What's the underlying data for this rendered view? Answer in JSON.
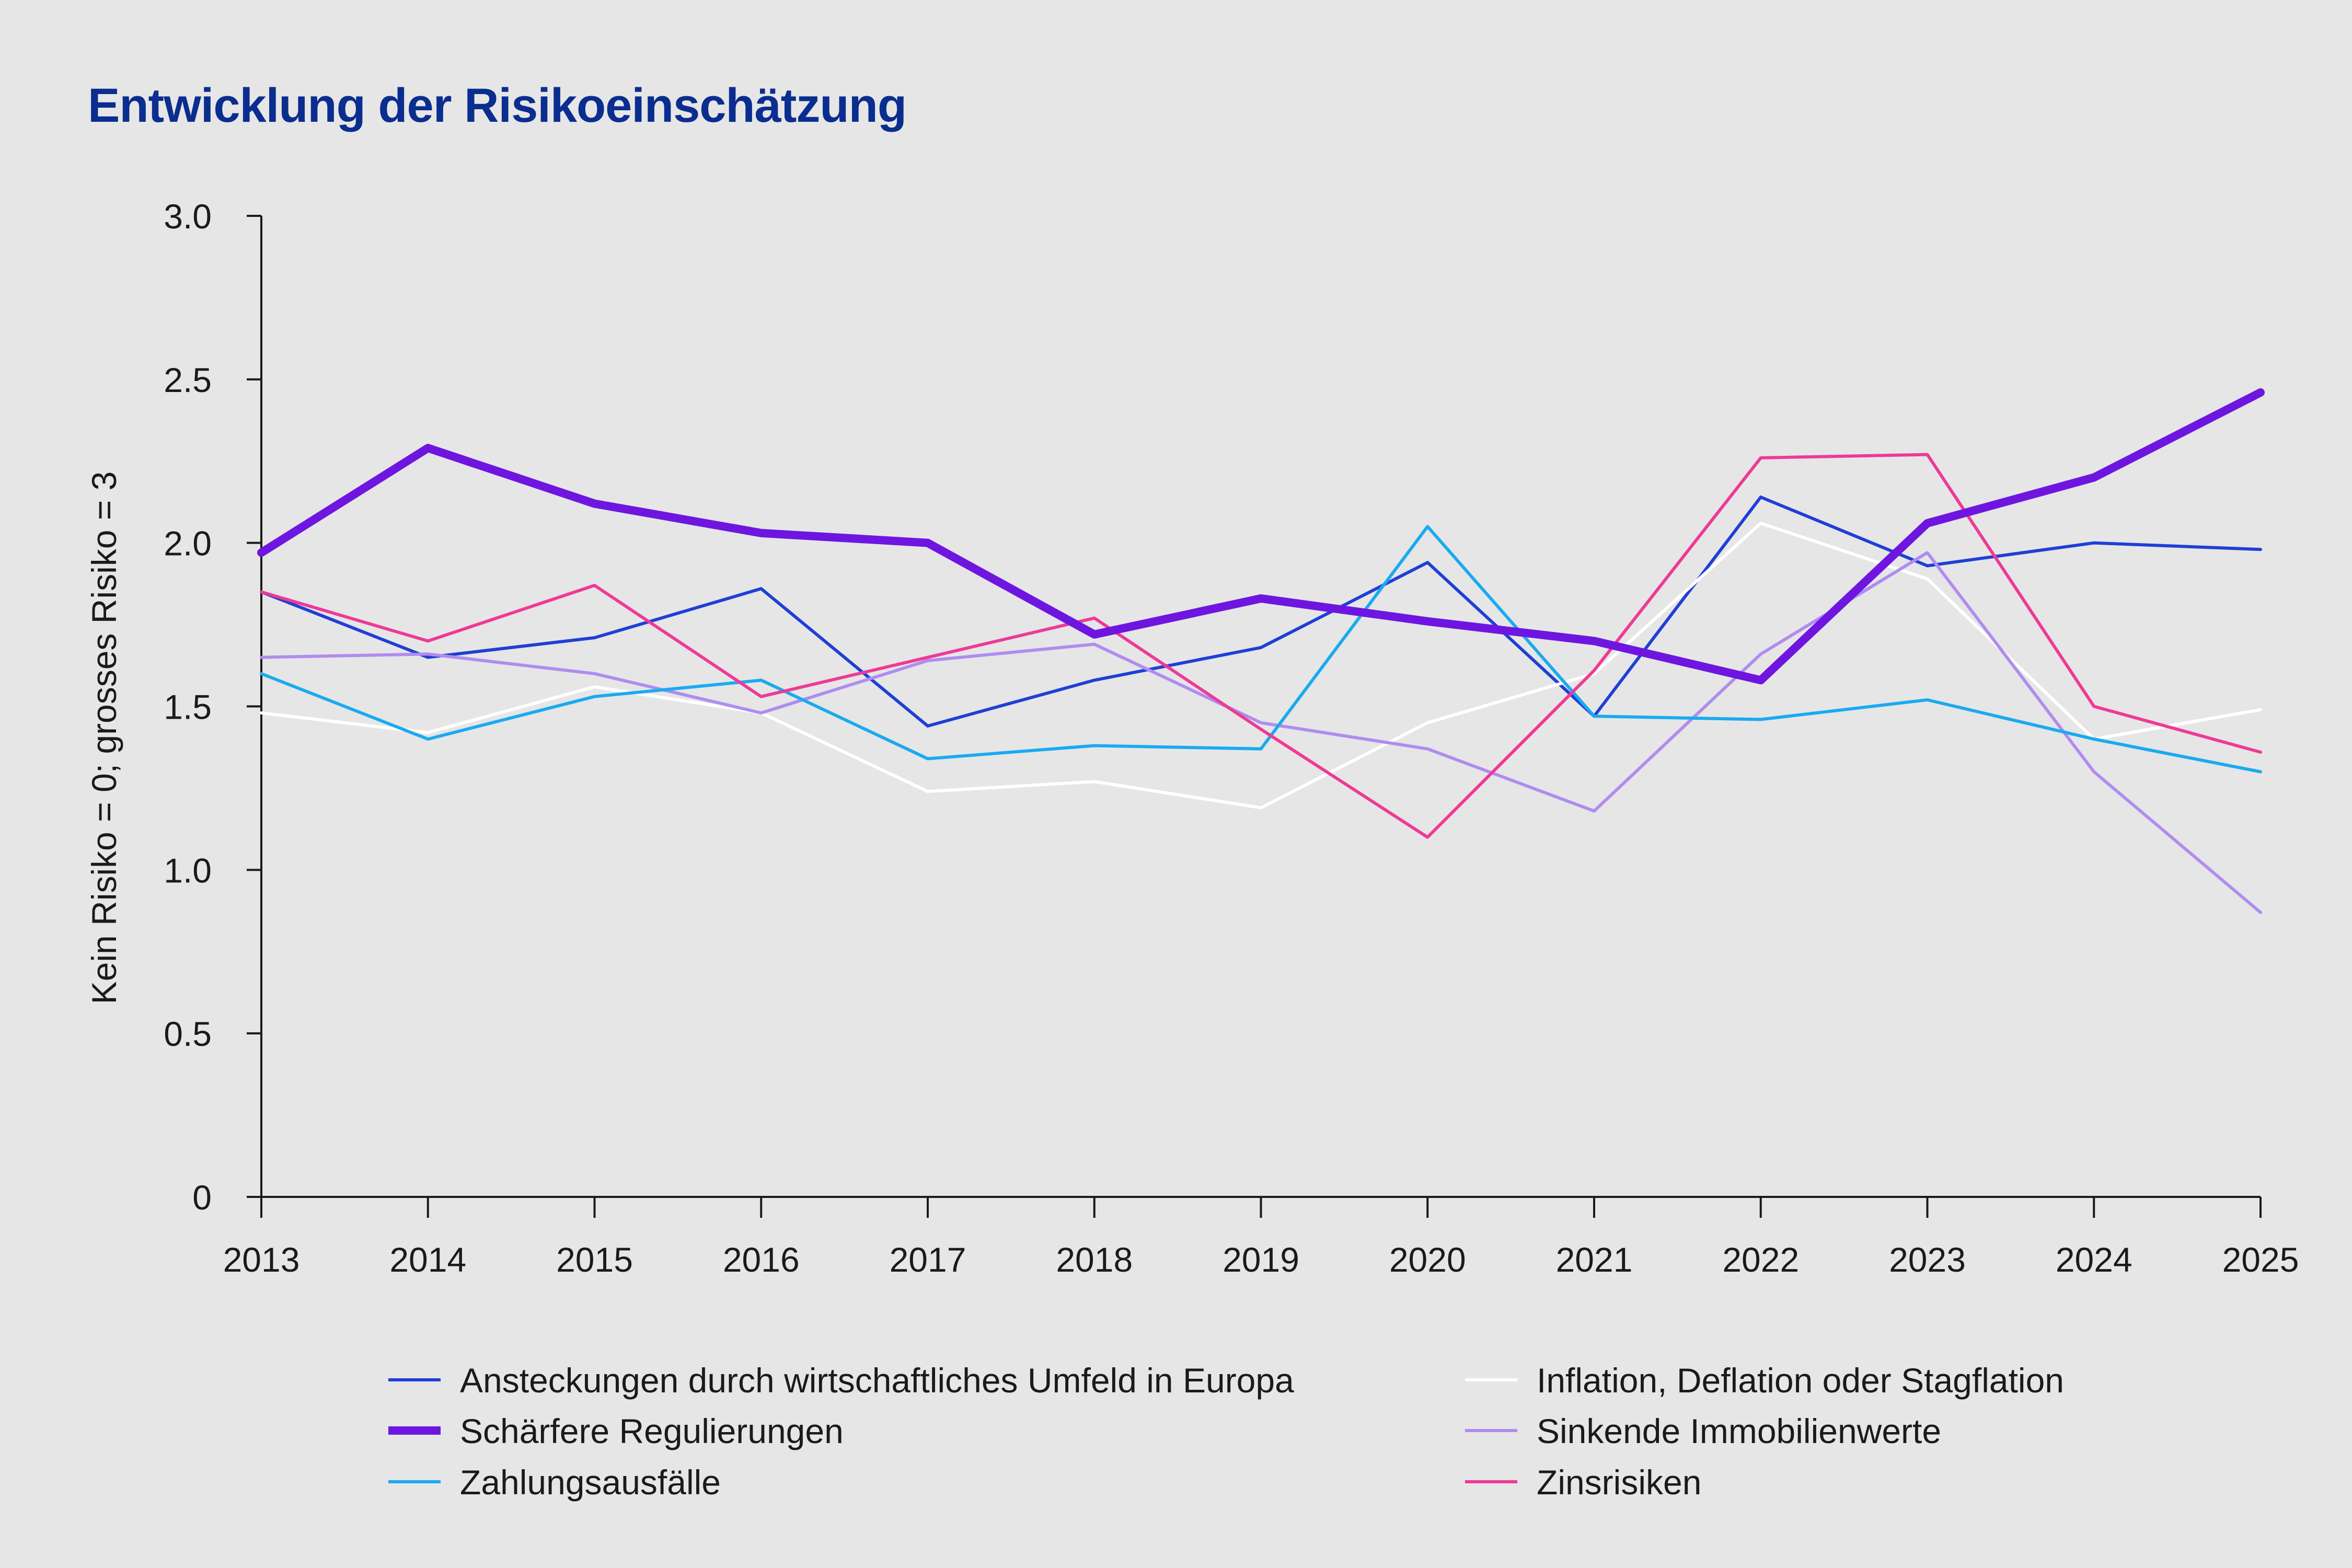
{
  "chart_data": {
    "type": "line",
    "title": "Entwicklung der Risikoeinschätzung",
    "xlabel": "",
    "ylabel": "Kein Risiko = 0; grosses Risiko = 3",
    "ylim": [
      0,
      3
    ],
    "yticks": [
      "0",
      "0.5",
      "1.0",
      "1.5",
      "2.0",
      "2.5",
      "3.0"
    ],
    "x": [
      "2013",
      "2014",
      "2015",
      "2016",
      "2017",
      "2018",
      "2019",
      "2020",
      "2021",
      "2022",
      "2023",
      "2024",
      "2025"
    ],
    "grid": false,
    "legend_position": "bottom",
    "series": [
      {
        "name": "Ansteckungen durch wirtschaftliches Umfeld in Europa",
        "color": "#1f3fd6",
        "bold": false,
        "values": [
          1.85,
          1.65,
          1.71,
          1.86,
          1.44,
          1.58,
          1.68,
          1.94,
          1.47,
          2.14,
          1.93,
          2.0,
          1.98
        ]
      },
      {
        "name": "Inflation, Deflation oder Stagflation",
        "color": "#ffffff",
        "bold": false,
        "values": [
          1.48,
          1.42,
          1.56,
          1.48,
          1.24,
          1.27,
          1.19,
          1.45,
          1.6,
          2.06,
          1.89,
          1.4,
          1.49
        ]
      },
      {
        "name": "Schärfere Regulierungen",
        "color": "#6e16e0",
        "bold": true,
        "values": [
          1.97,
          2.29,
          2.12,
          2.03,
          2.0,
          1.72,
          1.83,
          1.76,
          1.7,
          1.58,
          2.06,
          2.2,
          2.46
        ]
      },
      {
        "name": "Sinkende Immobilienwerte",
        "color": "#b08cf0",
        "bold": false,
        "values": [
          1.65,
          1.66,
          1.6,
          1.48,
          1.64,
          1.69,
          1.45,
          1.37,
          1.18,
          1.66,
          1.97,
          1.3,
          0.87
        ]
      },
      {
        "name": "Zahlungsausfälle",
        "color": "#1aaaf0",
        "bold": false,
        "values": [
          1.6,
          1.4,
          1.53,
          1.58,
          1.34,
          1.38,
          1.37,
          2.05,
          1.47,
          1.46,
          1.52,
          1.4,
          1.3
        ]
      },
      {
        "name": "Zinsrisiken",
        "color": "#ee3a96",
        "bold": false,
        "values": [
          1.85,
          1.7,
          1.87,
          1.53,
          1.65,
          1.77,
          1.43,
          1.1,
          1.61,
          2.26,
          2.27,
          1.5,
          1.36
        ]
      }
    ]
  }
}
